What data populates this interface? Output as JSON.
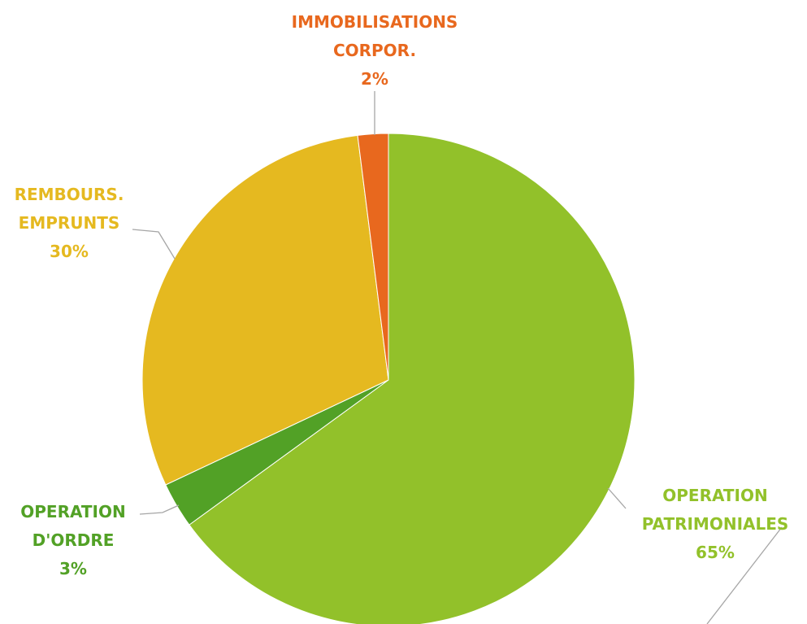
{
  "chart_data": {
    "type": "pie",
    "categories": [
      "OPERATION PATRIMONIALES",
      "OPERATION D'ORDRE",
      "REMBOURS. EMPRUNTS",
      "IMMOBILISATIONS CORPOR."
    ],
    "values": [
      65,
      3,
      30,
      2
    ],
    "value_labels": [
      "65%",
      "3%",
      "30%",
      "2%"
    ],
    "colors": [
      "#92c12a",
      "#52a126",
      "#e5b920",
      "#e8681e"
    ]
  }
}
